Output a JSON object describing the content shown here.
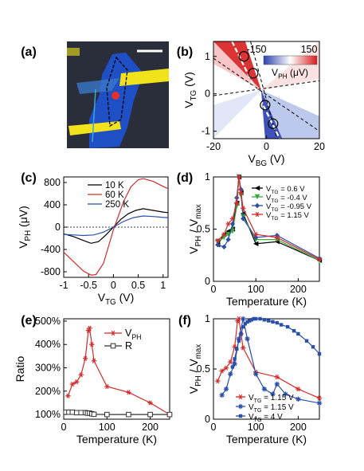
{
  "panel_labels": {
    "a": "(a)",
    "b": "(b)",
    "c": "(c)",
    "d": "(d)",
    "e": "(e)",
    "f": "(f)"
  },
  "chart_data": [
    {
      "panel": "a",
      "type": "image",
      "description_colors": {
        "background": "#2a2d3a",
        "flake": "#1e4fc4",
        "electrode": "#f2e21c",
        "spot": "#e8302a"
      }
    },
    {
      "panel": "b",
      "type": "heatmap",
      "xlabel": "V_BG (V)",
      "ylabel": "V_TG (V)",
      "xlim": [
        -20,
        20
      ],
      "ylim": [
        -1.2,
        1.4
      ],
      "xticks": [
        -20,
        0,
        20
      ],
      "yticks": [
        -1,
        0,
        1
      ],
      "colorbar": {
        "min": -150,
        "max": 150,
        "min_label": "-150",
        "max_label": "150",
        "label": "V_PH (μV)",
        "low_color": "#2a3fb0",
        "high_color": "#d81e1e"
      },
      "circle_markers": [
        [
          -8.5,
          1.0
        ],
        [
          -5,
          0.55
        ],
        [
          -0.5,
          -0.3
        ],
        [
          2.5,
          -0.8
        ]
      ]
    },
    {
      "panel": "c",
      "type": "line",
      "xlabel": "V_TG (V)",
      "ylabel": "V_PH (μV)",
      "xlim": [
        -1,
        1.1
      ],
      "ylim": [
        -900,
        900
      ],
      "xticks": [
        -1,
        -0.5,
        0,
        0.5,
        1
      ],
      "yticks": [
        -800,
        -400,
        0,
        400,
        800
      ],
      "series": [
        {
          "name": "10 K",
          "color": "#000000",
          "x": [
            -1,
            -0.8,
            -0.6,
            -0.45,
            -0.3,
            -0.15,
            0,
            0.15,
            0.3,
            0.45,
            0.6,
            0.8,
            1.0,
            1.1
          ],
          "y": [
            -120,
            -170,
            -240,
            -290,
            -260,
            -140,
            0,
            140,
            240,
            300,
            330,
            300,
            270,
            260
          ]
        },
        {
          "name": "60 K",
          "color": "#d42a2a",
          "x": [
            -1,
            -0.8,
            -0.6,
            -0.45,
            -0.35,
            -0.2,
            0,
            0.2,
            0.35,
            0.5,
            0.6,
            0.8,
            1.0,
            1.1
          ],
          "y": [
            -450,
            -620,
            -790,
            -860,
            -850,
            -650,
            -50,
            450,
            720,
            850,
            870,
            820,
            730,
            690
          ]
        },
        {
          "name": "250 K",
          "color": "#2a4fa8",
          "x": [
            -1,
            -0.8,
            -0.6,
            -0.4,
            -0.2,
            0,
            0.2,
            0.4,
            0.6,
            0.8,
            1.0,
            1.1
          ],
          "y": [
            -130,
            -140,
            -150,
            -140,
            -90,
            0,
            100,
            170,
            200,
            190,
            175,
            170
          ]
        }
      ]
    },
    {
      "panel": "d",
      "type": "line",
      "xlabel": "Temperature (K)",
      "ylabel": "V_PH / V_max",
      "xlim": [
        0,
        250
      ],
      "ylim": [
        0,
        1
      ],
      "xticks": [
        0,
        100,
        200
      ],
      "yticks": [
        0,
        0.5,
        1
      ],
      "series": [
        {
          "name": "V_TG = 0.6 V",
          "color": "#000000",
          "marker": "triangle-left",
          "x": [
            10,
            25,
            35,
            45,
            55,
            60,
            65,
            70,
            100,
            150,
            250
          ],
          "y": [
            0.35,
            0.45,
            0.48,
            0.5,
            0.75,
            1.0,
            0.85,
            0.65,
            0.36,
            0.38,
            0.2
          ]
        },
        {
          "name": "V_TG = -0.4 V",
          "color": "#3aa83a",
          "marker": "triangle-down",
          "x": [
            10,
            25,
            35,
            45,
            55,
            60,
            65,
            70,
            100,
            150,
            250
          ],
          "y": [
            0.38,
            0.42,
            0.45,
            0.48,
            0.72,
            1.0,
            0.82,
            0.62,
            0.4,
            0.4,
            0.2
          ]
        },
        {
          "name": "V_TG = -0.95 V",
          "color": "#2a4fa8",
          "marker": "diamond",
          "x": [
            10,
            25,
            35,
            45,
            55,
            60,
            65,
            70,
            100,
            150,
            250
          ],
          "y": [
            0.35,
            0.33,
            0.4,
            0.55,
            0.8,
            1.0,
            0.88,
            0.6,
            0.42,
            0.44,
            0.22
          ]
        },
        {
          "name": "V_TG = 1.15 V",
          "color": "#d42a2a",
          "marker": "star",
          "x": [
            10,
            25,
            35,
            45,
            55,
            60,
            65,
            70,
            100,
            150,
            250
          ],
          "y": [
            0.39,
            0.45,
            0.55,
            0.6,
            0.75,
            1.0,
            0.85,
            0.7,
            0.45,
            0.42,
            0.21
          ]
        }
      ]
    },
    {
      "panel": "e",
      "type": "line",
      "xlabel": "Temperature (K)",
      "ylabel": "Ratio",
      "xlim": [
        0,
        245
      ],
      "ylim": [
        80,
        510
      ],
      "xticks": [
        0,
        100,
        200
      ],
      "yticks": [
        100,
        200,
        300,
        400,
        500
      ],
      "ytick_labels": [
        "100%",
        "200%",
        "300%",
        "400%",
        "500%"
      ],
      "series": [
        {
          "name": "V_PH",
          "color": "#d42a2a",
          "marker": "star",
          "x": [
            10,
            20,
            30,
            40,
            50,
            57,
            60,
            65,
            70,
            100,
            150,
            200,
            245
          ],
          "y": [
            180,
            230,
            240,
            270,
            340,
            460,
            470,
            400,
            330,
            220,
            195,
            150,
            100
          ]
        },
        {
          "name": "R",
          "color": "#333333",
          "marker": "square-open",
          "x": [
            5,
            12,
            20,
            30,
            40,
            50,
            55,
            60,
            65,
            70,
            100,
            150,
            200,
            245
          ],
          "y": [
            110,
            110,
            110,
            108,
            108,
            108,
            106,
            106,
            103,
            101,
            100,
            100,
            100,
            100
          ]
        }
      ]
    },
    {
      "panel": "f",
      "type": "line",
      "xlabel": "Temperature (K)",
      "ylabel": "V_PH / V_max",
      "xlim": [
        0,
        250
      ],
      "ylim": [
        0,
        1
      ],
      "xticks": [
        0,
        100,
        200
      ],
      "yticks": [
        0,
        0.5,
        1
      ],
      "series": [
        {
          "name": "V_TG = 1.15 V",
          "color": "#d42a2a",
          "marker": "star",
          "x": [
            10,
            20,
            30,
            40,
            50,
            57,
            60,
            65,
            70,
            100,
            150,
            200,
            250
          ],
          "y": [
            0.38,
            0.48,
            0.51,
            0.57,
            0.72,
            0.98,
            1.0,
            0.85,
            0.71,
            0.47,
            0.42,
            0.3,
            0.21
          ]
        },
        {
          "name": "V_TG = 1.15 V",
          "color": "#2a4fa8",
          "marker": "asterisk",
          "x": [
            20,
            30,
            40,
            50,
            60,
            70,
            80,
            100,
            120,
            140,
            150,
            170,
            200,
            250
          ],
          "y": [
            0.24,
            0.3,
            0.45,
            0.55,
            0.8,
            1.0,
            0.8,
            0.45,
            0.3,
            0.25,
            0.35,
            0.25,
            0.2,
            0.16
          ]
        },
        {
          "name": "V_TG = 4 V",
          "color": "#2a4fa8",
          "marker": "square",
          "x": [
            45,
            50,
            55,
            60,
            65,
            70,
            75,
            80,
            85,
            90,
            95,
            100,
            110,
            120,
            130,
            140,
            150,
            160,
            175,
            190,
            200,
            220,
            235,
            250
          ],
          "y": [
            0.52,
            0.6,
            0.7,
            0.78,
            0.85,
            0.92,
            0.95,
            0.97,
            0.98,
            0.99,
            1.0,
            1.0,
            1.0,
            0.99,
            0.98,
            0.97,
            0.96,
            0.94,
            0.92,
            0.88,
            0.85,
            0.78,
            0.72,
            0.65
          ]
        }
      ]
    }
  ]
}
